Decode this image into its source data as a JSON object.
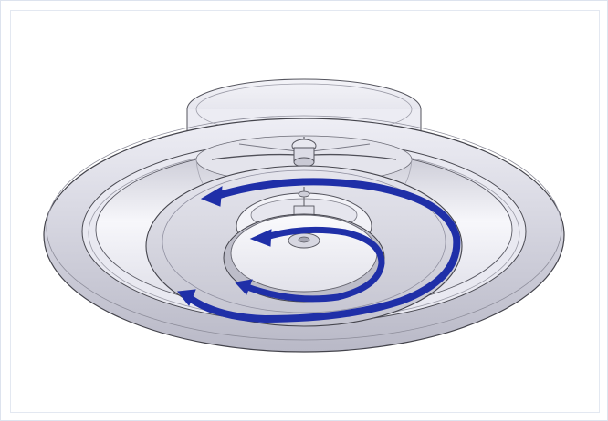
{
  "diagram": {
    "subject": "diffuser-assembly",
    "colors": {
      "background": "#ffffff",
      "frame_border": "#dde3ee",
      "metal_light": "#f4f4f9",
      "metal_mid": "#d9d9e2",
      "metal_dark": "#a9a9b6",
      "outline": "#4a4a52",
      "arrow": "#1f2fa8"
    },
    "icons": {
      "outer_arrow": "spiral-arrow-icon",
      "inner_arrow": "spiral-arrow-icon"
    }
  }
}
